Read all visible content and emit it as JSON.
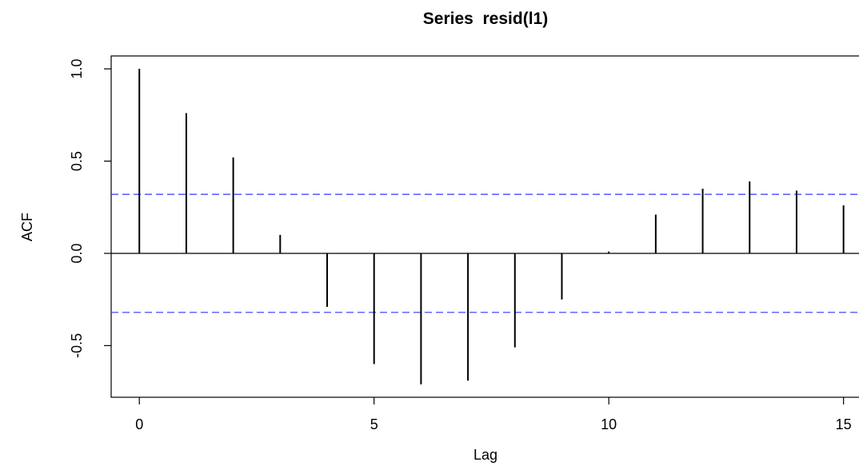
{
  "chart_data": {
    "type": "bar",
    "title": "Series  resid(l1)",
    "xlabel": "Lag",
    "ylabel": "ACF",
    "x": [
      0,
      1,
      2,
      3,
      4,
      5,
      6,
      7,
      8,
      9,
      10,
      11,
      12,
      13,
      14,
      15
    ],
    "values": [
      1.0,
      0.76,
      0.52,
      0.1,
      -0.29,
      -0.6,
      -0.71,
      -0.69,
      -0.51,
      -0.25,
      0.01,
      0.21,
      0.35,
      0.39,
      0.34,
      0.26
    ],
    "ci_bounds": [
      0.32,
      -0.32
    ],
    "ci_color": "#3333ff",
    "xlim": [
      -0.6,
      15.5
    ],
    "ylim": [
      -0.78,
      1.07
    ],
    "x_ticks": [
      "0",
      "5",
      "10",
      "15"
    ],
    "y_ticks": [
      "-0.5",
      "0.0",
      "0.5",
      "1.0"
    ]
  }
}
